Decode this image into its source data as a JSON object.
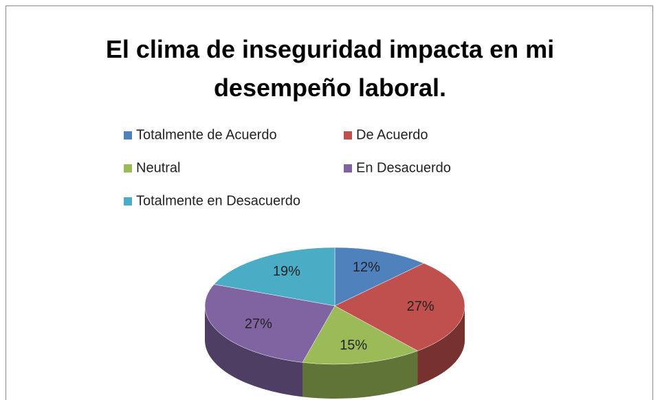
{
  "chart_data": {
    "type": "pie3d",
    "title": "El clima de inseguridad impacta en mi desempeño laboral.",
    "categories": [
      "Totalmente de Acuerdo",
      "De Acuerdo",
      "Neutral",
      "En Desacuerdo",
      "Totalmente en Desacuerdo"
    ],
    "values": [
      12,
      27,
      15,
      27,
      19
    ],
    "value_labels": [
      "12%",
      "27%",
      "15%",
      "27%",
      "19%"
    ],
    "colors": [
      "#4f81bd",
      "#c0504d",
      "#9bbb59",
      "#8064a2",
      "#4bacc6"
    ],
    "legend": "top"
  }
}
